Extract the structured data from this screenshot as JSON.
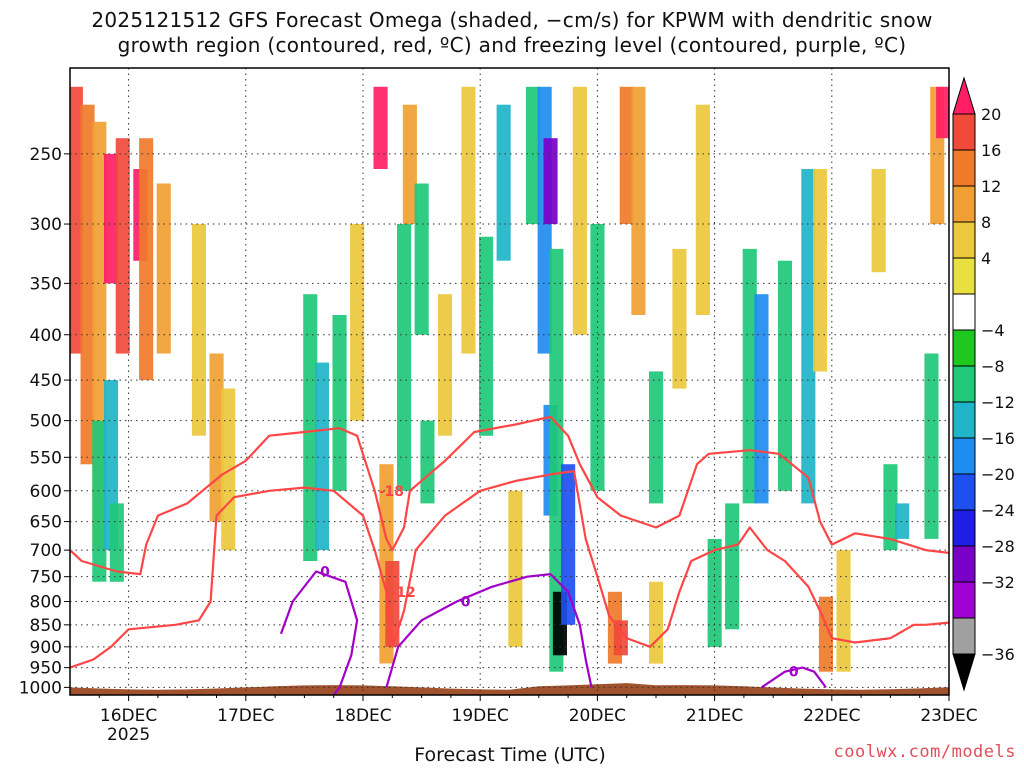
{
  "title_line1": "2025121512 GFS Forecast Omega (shaded, −cm/s) for KPWM with dendritic snow",
  "title_line2": "growth region (contoured, red, ºC) and freezing level (contoured, purple, ºC)",
  "x_axis_title": "Forecast Time (UTC)",
  "credit": "coolwx.com/models",
  "chart_data": {
    "type": "heatmap",
    "title": "2025121512 GFS Forecast Omega (shaded, −cm/s) for KPWM with dendritic snow growth region (contoured, red, ºC) and freezing level (contoured, purple, ºC)",
    "xlabel": "Forecast Time (UTC)",
    "ylabel": "",
    "x_ticks": [
      "16DEC",
      "17DEC",
      "18DEC",
      "19DEC",
      "20DEC",
      "21DEC",
      "22DEC",
      "23DEC"
    ],
    "x_tick_sublabel": "2025",
    "y_ticks": [
      250,
      300,
      350,
      400,
      450,
      500,
      550,
      600,
      650,
      700,
      750,
      800,
      850,
      900,
      950,
      1000
    ],
    "y_units": "hPa",
    "y_scale": "log-pressure (inverted)",
    "xlim_days": [
      15.5,
      23.0
    ],
    "ylim": [
      200,
      1020
    ],
    "grid": true,
    "colorbar": {
      "labels": [
        "20",
        "16",
        "12",
        "8",
        "4",
        "−4",
        "−8",
        "−12",
        "−16",
        "−20",
        "−24",
        "−28",
        "−32",
        "−36"
      ],
      "colors": [
        "#ff1e64",
        "#f04a3a",
        "#f07a2a",
        "#f0a032",
        "#ecc83c",
        "#e8e040",
        "#ffffff",
        "#1ec81e",
        "#20c878",
        "#20b4c8",
        "#1e8cf0",
        "#1e50f0",
        "#1e1ee6",
        "#7a00c8",
        "#a000d2",
        "#a0a0a0",
        "#000000"
      ],
      "units": "−cm/s"
    },
    "omega_cells": [
      {
        "day": 15.55,
        "p0": 210,
        "p1": 420,
        "value": 16
      },
      {
        "day": 15.65,
        "p0": 220,
        "p1": 560,
        "value": 12
      },
      {
        "day": 15.75,
        "p0": 230,
        "p1": 700,
        "value": 8
      },
      {
        "day": 15.85,
        "p0": 250,
        "p1": 350,
        "value": 20
      },
      {
        "day": 15.95,
        "p0": 240,
        "p1": 420,
        "value": 16
      },
      {
        "day": 16.1,
        "p0": 260,
        "p1": 330,
        "value": 20
      },
      {
        "day": 16.15,
        "p0": 240,
        "p1": 450,
        "value": 12
      },
      {
        "day": 16.3,
        "p0": 270,
        "p1": 420,
        "value": 8
      },
      {
        "day": 16.6,
        "p0": 300,
        "p1": 520,
        "value": 4
      },
      {
        "day": 16.75,
        "p0": 420,
        "p1": 650,
        "value": 8
      },
      {
        "day": 16.85,
        "p0": 460,
        "p1": 700,
        "value": 4
      },
      {
        "day": 15.75,
        "p0": 500,
        "p1": 760,
        "value": -8
      },
      {
        "day": 15.85,
        "p0": 450,
        "p1": 700,
        "value": -12
      },
      {
        "day": 15.9,
        "p0": 620,
        "p1": 760,
        "value": -8
      },
      {
        "day": 17.55,
        "p0": 360,
        "p1": 720,
        "value": -8
      },
      {
        "day": 17.65,
        "p0": 430,
        "p1": 700,
        "value": -12
      },
      {
        "day": 17.8,
        "p0": 380,
        "p1": 600,
        "value": -8
      },
      {
        "day": 17.95,
        "p0": 300,
        "p1": 500,
        "value": 4
      },
      {
        "day": 18.15,
        "p0": 210,
        "p1": 260,
        "value": 20
      },
      {
        "day": 18.2,
        "p0": 560,
        "p1": 940,
        "value": 8
      },
      {
        "day": 18.25,
        "p0": 720,
        "p1": 900,
        "value": 16
      },
      {
        "day": 18.35,
        "p0": 300,
        "p1": 600,
        "value": -8
      },
      {
        "day": 18.4,
        "p0": 220,
        "p1": 300,
        "value": 8
      },
      {
        "day": 18.5,
        "p0": 270,
        "p1": 400,
        "value": -8
      },
      {
        "day": 18.55,
        "p0": 500,
        "p1": 620,
        "value": -8
      },
      {
        "day": 18.7,
        "p0": 360,
        "p1": 520,
        "value": 4
      },
      {
        "day": 18.9,
        "p0": 210,
        "p1": 420,
        "value": 4
      },
      {
        "day": 19.05,
        "p0": 310,
        "p1": 520,
        "value": -8
      },
      {
        "day": 19.2,
        "p0": 220,
        "p1": 330,
        "value": -12
      },
      {
        "day": 19.3,
        "p0": 600,
        "p1": 900,
        "value": 4
      },
      {
        "day": 19.45,
        "p0": 210,
        "p1": 300,
        "value": -8
      },
      {
        "day": 19.55,
        "p0": 210,
        "p1": 420,
        "value": -16
      },
      {
        "day": 19.6,
        "p0": 240,
        "p1": 300,
        "value": -28
      },
      {
        "day": 19.6,
        "p0": 480,
        "p1": 640,
        "value": -16
      },
      {
        "day": 19.65,
        "p0": 320,
        "p1": 960,
        "value": -8
      },
      {
        "day": 19.68,
        "p0": 780,
        "p1": 920,
        "value": -36
      },
      {
        "day": 19.75,
        "p0": 560,
        "p1": 850,
        "value": -20
      },
      {
        "day": 19.85,
        "p0": 210,
        "p1": 400,
        "value": 4
      },
      {
        "day": 20.0,
        "p0": 300,
        "p1": 600,
        "value": -8
      },
      {
        "day": 20.15,
        "p0": 780,
        "p1": 940,
        "value": 12
      },
      {
        "day": 20.2,
        "p0": 840,
        "p1": 920,
        "value": 16
      },
      {
        "day": 20.25,
        "p0": 210,
        "p1": 300,
        "value": 12
      },
      {
        "day": 20.35,
        "p0": 210,
        "p1": 380,
        "value": 8
      },
      {
        "day": 20.5,
        "p0": 760,
        "p1": 940,
        "value": 4
      },
      {
        "day": 20.5,
        "p0": 440,
        "p1": 620,
        "value": -8
      },
      {
        "day": 20.7,
        "p0": 320,
        "p1": 460,
        "value": 4
      },
      {
        "day": 20.9,
        "p0": 220,
        "p1": 380,
        "value": 4
      },
      {
        "day": 21.0,
        "p0": 680,
        "p1": 900,
        "value": -8
      },
      {
        "day": 21.15,
        "p0": 620,
        "p1": 860,
        "value": -8
      },
      {
        "day": 21.3,
        "p0": 320,
        "p1": 620,
        "value": -8
      },
      {
        "day": 21.4,
        "p0": 360,
        "p1": 620,
        "value": -16
      },
      {
        "day": 21.6,
        "p0": 330,
        "p1": 600,
        "value": -8
      },
      {
        "day": 21.8,
        "p0": 260,
        "p1": 620,
        "value": -12
      },
      {
        "day": 21.9,
        "p0": 260,
        "p1": 440,
        "value": 4
      },
      {
        "day": 21.95,
        "p0": 790,
        "p1": 960,
        "value": 12
      },
      {
        "day": 22.1,
        "p0": 700,
        "p1": 960,
        "value": 4
      },
      {
        "day": 22.4,
        "p0": 260,
        "p1": 340,
        "value": 4
      },
      {
        "day": 22.5,
        "p0": 560,
        "p1": 700,
        "value": -8
      },
      {
        "day": 22.6,
        "p0": 620,
        "p1": 680,
        "value": -12
      },
      {
        "day": 22.9,
        "p0": 210,
        "p1": 300,
        "value": 8
      },
      {
        "day": 22.95,
        "p0": 210,
        "p1": 240,
        "value": 20
      },
      {
        "day": 22.85,
        "p0": 420,
        "p1": 680,
        "value": -8
      }
    ],
    "contours": [
      {
        "label": "-18",
        "color": "#ff4646",
        "kind": "dendritic",
        "points": [
          [
            15.5,
            700
          ],
          [
            15.6,
            720
          ],
          [
            15.9,
            740
          ],
          [
            16.1,
            745
          ],
          [
            16.15,
            690
          ],
          [
            16.25,
            640
          ],
          [
            16.5,
            620
          ],
          [
            16.8,
            575
          ],
          [
            17.0,
            555
          ],
          [
            17.2,
            520
          ],
          [
            17.5,
            515
          ],
          [
            17.8,
            510
          ],
          [
            17.95,
            520
          ],
          [
            18.1,
            600
          ],
          [
            18.2,
            680
          ],
          [
            18.25,
            700
          ],
          [
            18.35,
            660
          ],
          [
            18.4,
            600
          ],
          [
            18.7,
            555
          ],
          [
            18.95,
            515
          ],
          [
            19.3,
            505
          ],
          [
            19.6,
            495
          ],
          [
            19.75,
            520
          ],
          [
            19.85,
            560
          ],
          [
            20.0,
            610
          ],
          [
            20.2,
            640
          ],
          [
            20.5,
            660
          ],
          [
            20.7,
            640
          ],
          [
            20.85,
            560
          ],
          [
            20.95,
            545
          ],
          [
            21.3,
            540
          ],
          [
            21.55,
            545
          ],
          [
            21.8,
            580
          ],
          [
            21.9,
            650
          ],
          [
            22.0,
            690
          ],
          [
            22.2,
            670
          ],
          [
            22.5,
            680
          ],
          [
            22.8,
            700
          ],
          [
            23.0,
            705
          ]
        ]
      },
      {
        "label": "-12",
        "color": "#ff4646",
        "kind": "dendritic",
        "points": [
          [
            15.5,
            950
          ],
          [
            15.7,
            930
          ],
          [
            15.85,
            900
          ],
          [
            16.0,
            860
          ],
          [
            16.4,
            850
          ],
          [
            16.6,
            840
          ],
          [
            16.7,
            800
          ],
          [
            16.75,
            640
          ],
          [
            16.9,
            610
          ],
          [
            17.2,
            600
          ],
          [
            17.5,
            595
          ],
          [
            17.75,
            600
          ],
          [
            18.0,
            640
          ],
          [
            18.1,
            700
          ],
          [
            18.2,
            780
          ],
          [
            18.25,
            900
          ],
          [
            18.35,
            820
          ],
          [
            18.45,
            700
          ],
          [
            18.7,
            640
          ],
          [
            19.0,
            600
          ],
          [
            19.3,
            585
          ],
          [
            19.6,
            575
          ],
          [
            19.8,
            570
          ],
          [
            19.9,
            680
          ],
          [
            20.0,
            750
          ],
          [
            20.1,
            830
          ],
          [
            20.25,
            880
          ],
          [
            20.45,
            900
          ],
          [
            20.6,
            860
          ],
          [
            20.7,
            780
          ],
          [
            20.8,
            720
          ],
          [
            21.0,
            700
          ],
          [
            21.2,
            690
          ],
          [
            21.3,
            660
          ],
          [
            21.45,
            700
          ],
          [
            21.6,
            720
          ],
          [
            21.8,
            770
          ],
          [
            21.9,
            820
          ],
          [
            22.0,
            880
          ],
          [
            22.2,
            890
          ],
          [
            22.5,
            880
          ],
          [
            22.7,
            850
          ],
          [
            22.8,
            850
          ],
          [
            23.0,
            845
          ]
        ]
      },
      {
        "label": "0",
        "color": "#a000c8",
        "kind": "freezing",
        "points": [
          [
            17.3,
            870
          ],
          [
            17.4,
            800
          ],
          [
            17.6,
            740
          ],
          [
            17.85,
            760
          ],
          [
            17.95,
            840
          ],
          [
            17.9,
            920
          ],
          [
            17.8,
            1000
          ],
          [
            17.7,
            1040
          ]
        ]
      },
      {
        "label": "0",
        "color": "#a000c8",
        "kind": "freezing",
        "points": [
          [
            18.2,
            1000
          ],
          [
            18.3,
            900
          ],
          [
            18.5,
            840
          ],
          [
            18.8,
            800
          ],
          [
            19.1,
            770
          ],
          [
            19.4,
            750
          ],
          [
            19.6,
            745
          ],
          [
            19.75,
            780
          ],
          [
            19.85,
            850
          ],
          [
            19.9,
            930
          ],
          [
            19.95,
            1000
          ]
        ]
      },
      {
        "label": "0",
        "color": "#a000c8",
        "kind": "freezing",
        "points": [
          [
            21.4,
            1000
          ],
          [
            21.6,
            960
          ],
          [
            21.75,
            950
          ],
          [
            21.85,
            960
          ],
          [
            21.95,
            1000
          ]
        ]
      }
    ]
  }
}
